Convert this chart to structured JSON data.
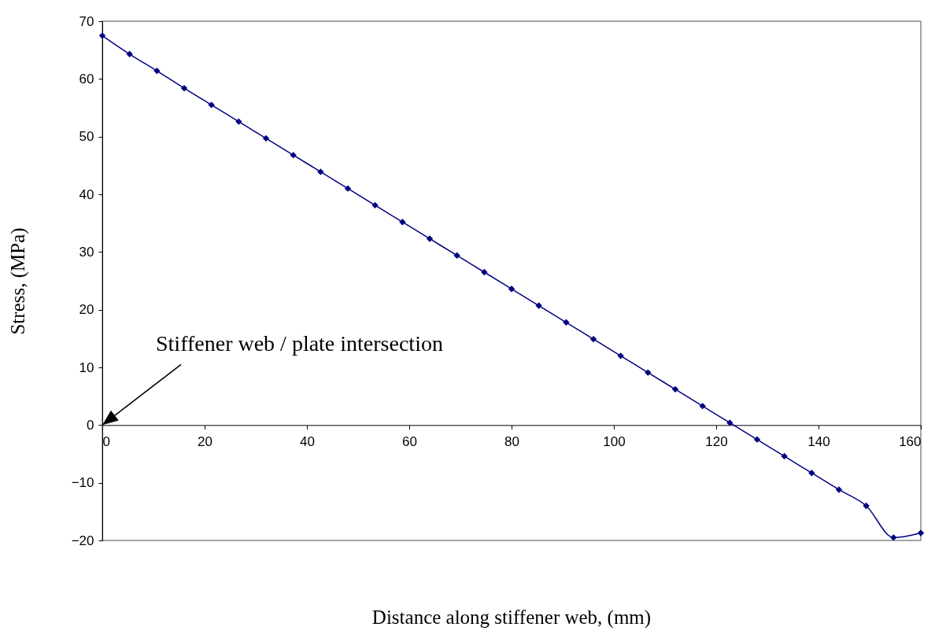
{
  "chart_data": {
    "type": "line",
    "xlabel": "Distance along stiffener web, (mm)",
    "ylabel": "Stress, (MPa)",
    "x": [
      0,
      5.33,
      10.67,
      16,
      21.33,
      26.67,
      32,
      37.33,
      42.67,
      48,
      53.33,
      58.67,
      64,
      69.33,
      74.67,
      80,
      85.33,
      90.67,
      96,
      101.33,
      106.67,
      112,
      117.33,
      122.67,
      128,
      133.33,
      138.67,
      144,
      149.33,
      154.67,
      160
    ],
    "series": [
      {
        "color": "#000080",
        "values": [
          67.5,
          64.3,
          61.4,
          58.4,
          55.5,
          52.6,
          49.7,
          46.8,
          43.9,
          41.0,
          38.1,
          35.2,
          32.3,
          29.4,
          26.5,
          23.6,
          20.7,
          17.8,
          14.9,
          12.0,
          9.1,
          6.2,
          3.3,
          0.4,
          -2.5,
          -5.4,
          -8.3,
          -11.2,
          -14.0,
          -19.5,
          -18.7
        ]
      }
    ],
    "xlim": [
      0,
      160
    ],
    "xticks": [
      0,
      20,
      40,
      60,
      80,
      100,
      120,
      140,
      160
    ],
    "ylim": [
      -20,
      70
    ],
    "yticks": [
      -20,
      -10,
      0,
      10,
      20,
      30,
      40,
      50,
      60,
      70
    ],
    "annotations": [
      "Stiffener web / plate intersection"
    ],
    "marker": "diamond",
    "line_style": "solid",
    "grid": false
  }
}
